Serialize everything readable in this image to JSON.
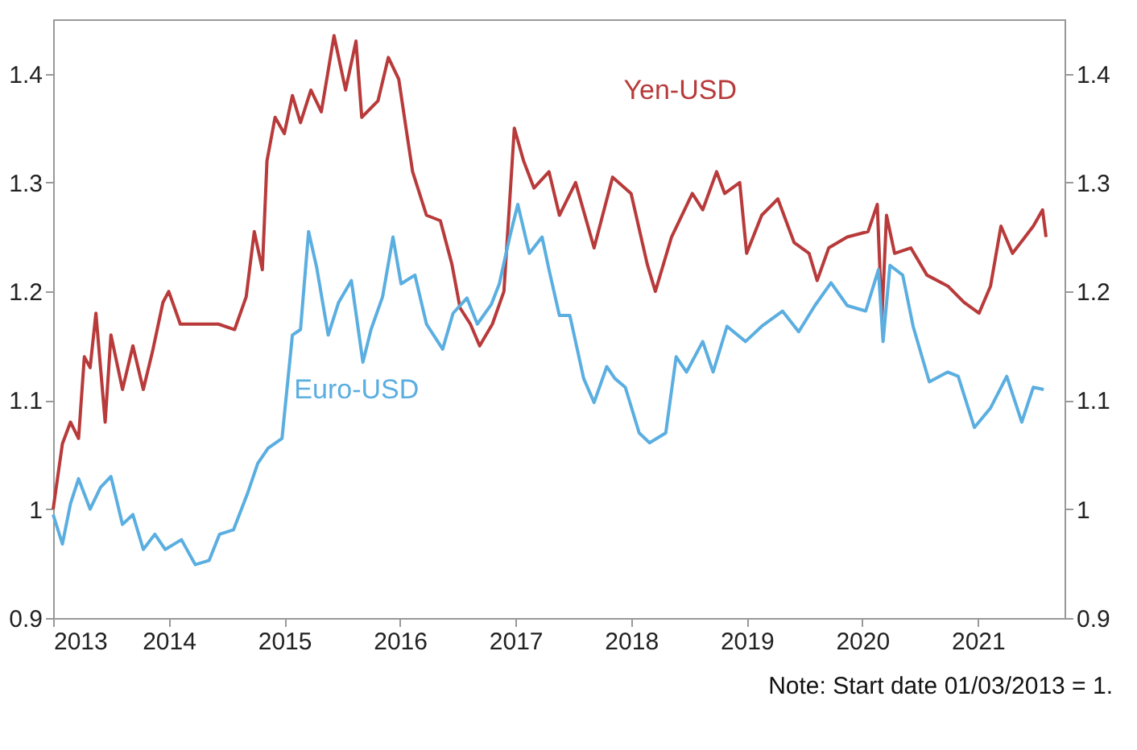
{
  "chart_data": {
    "type": "line",
    "xlim": [
      2013,
      2021.75
    ],
    "xticks": [
      2013,
      2014,
      2015,
      2016,
      2017,
      2018,
      2019,
      2020,
      2021
    ],
    "ylim": [
      0.9,
      1.45
    ],
    "yticks": [
      0.9,
      1,
      1.1,
      1.2,
      1.3,
      1.4
    ],
    "y2lim": [
      0.9,
      1.45
    ],
    "y2ticks": [
      0.9,
      1,
      1.1,
      1.2,
      1.3,
      1.4
    ],
    "grid": false,
    "legend": false,
    "marker": "none",
    "line_style": "solid",
    "annotations": [
      "Note: Start date 01/03/2013 = 1."
    ],
    "series": [
      {
        "name": "Yen-USD",
        "color": "#b83a3a",
        "x": [
          2013,
          2013.08,
          2013.15,
          2013.22,
          2013.27,
          2013.32,
          2013.37,
          2013.45,
          2013.5,
          2013.6,
          2013.69,
          2013.78,
          2013.86,
          2013.95,
          2014.0,
          2014.1,
          2014.25,
          2014.43,
          2014.57,
          2014.67,
          2014.74,
          2014.81,
          2014.85,
          2014.92,
          2015.0,
          2015.07,
          2015.14,
          2015.23,
          2015.32,
          2015.43,
          2015.53,
          2015.62,
          2015.67,
          2015.81,
          2015.9,
          2015.99,
          2016.06,
          2016.11,
          2016.23,
          2016.35,
          2016.45,
          2016.52,
          2016.61,
          2016.69,
          2016.8,
          2016.9,
          2016.99,
          2017.07,
          2017.16,
          2017.29,
          2017.38,
          2017.52,
          2017.68,
          2017.84,
          2018.0,
          2018.14,
          2018.21,
          2018.35,
          2018.53,
          2018.62,
          2018.74,
          2018.81,
          2018.94,
          2019.0,
          2019.13,
          2019.27,
          2019.41,
          2019.54,
          2019.61,
          2019.71,
          2019.87,
          2020.05,
          2020.13,
          2020.17,
          2020.21,
          2020.28,
          2020.42,
          2020.56,
          2020.74,
          2020.88,
          2021.01,
          2021.11,
          2021.2,
          2021.3,
          2021.48,
          2021.56,
          2021.59
        ],
        "values": [
          1.0,
          1.06,
          1.08,
          1.065,
          1.14,
          1.13,
          1.18,
          1.08,
          1.16,
          1.11,
          1.15,
          1.11,
          1.145,
          1.19,
          1.2,
          1.17,
          1.17,
          1.17,
          1.165,
          1.195,
          1.255,
          1.22,
          1.32,
          1.36,
          1.345,
          1.38,
          1.355,
          1.385,
          1.365,
          1.435,
          1.385,
          1.43,
          1.36,
          1.375,
          1.415,
          1.395,
          1.345,
          1.31,
          1.27,
          1.265,
          1.225,
          1.185,
          1.17,
          1.15,
          1.17,
          1.2,
          1.35,
          1.32,
          1.295,
          1.31,
          1.27,
          1.3,
          1.24,
          1.305,
          1.29,
          1.225,
          1.2,
          1.25,
          1.29,
          1.275,
          1.31,
          1.29,
          1.3,
          1.235,
          1.27,
          1.285,
          1.245,
          1.235,
          1.21,
          1.24,
          1.25,
          1.255,
          1.28,
          1.175,
          1.27,
          1.235,
          1.24,
          1.215,
          1.205,
          1.19,
          1.18,
          1.205,
          1.26,
          1.235,
          1.26,
          1.275,
          1.25
        ]
      },
      {
        "name": "Euro-USD",
        "color": "#5aaee0",
        "x": [
          2013,
          2013.08,
          2013.15,
          2013.22,
          2013.32,
          2013.41,
          2013.5,
          2013.6,
          2013.69,
          2013.78,
          2013.88,
          2013.97,
          2014.11,
          2014.23,
          2014.35,
          2014.44,
          2014.56,
          2014.68,
          2014.77,
          2014.86,
          2014.98,
          2015.07,
          2015.14,
          2015.21,
          2015.28,
          2015.38,
          2015.47,
          2015.58,
          2015.68,
          2015.75,
          2015.85,
          2015.94,
          2016.01,
          2016.13,
          2016.23,
          2016.37,
          2016.46,
          2016.58,
          2016.67,
          2016.79,
          2016.86,
          2016.95,
          2017.02,
          2017.12,
          2017.23,
          2017.29,
          2017.38,
          2017.47,
          2017.59,
          2017.68,
          2017.79,
          2017.86,
          2017.95,
          2018.07,
          2018.16,
          2018.3,
          2018.39,
          2018.48,
          2018.62,
          2018.71,
          2018.83,
          2018.99,
          2019.13,
          2019.31,
          2019.45,
          2019.59,
          2019.73,
          2019.87,
          2020.03,
          2020.14,
          2020.18,
          2020.24,
          2020.35,
          2020.44,
          2020.58,
          2020.74,
          2020.83,
          2020.97,
          2021.11,
          2021.25,
          2021.38,
          2021.48,
          2021.57
        ],
        "values": [
          0.995,
          0.968,
          1.005,
          1.028,
          1.0,
          1.02,
          1.03,
          0.986,
          0.995,
          0.963,
          0.977,
          0.963,
          0.972,
          0.949,
          0.953,
          0.977,
          0.981,
          1.014,
          1.042,
          1.056,
          1.065,
          1.16,
          1.165,
          1.255,
          1.222,
          1.16,
          1.19,
          1.21,
          1.135,
          1.165,
          1.195,
          1.25,
          1.207,
          1.215,
          1.17,
          1.147,
          1.18,
          1.194,
          1.17,
          1.188,
          1.207,
          1.25,
          1.28,
          1.235,
          1.25,
          1.22,
          1.178,
          1.178,
          1.12,
          1.098,
          1.131,
          1.12,
          1.112,
          1.07,
          1.061,
          1.07,
          1.14,
          1.126,
          1.154,
          1.126,
          1.168,
          1.154,
          1.168,
          1.182,
          1.163,
          1.187,
          1.208,
          1.187,
          1.182,
          1.22,
          1.154,
          1.224,
          1.215,
          1.168,
          1.117,
          1.126,
          1.122,
          1.075,
          1.093,
          1.122,
          1.08,
          1.112,
          1.11
        ]
      }
    ]
  }
}
